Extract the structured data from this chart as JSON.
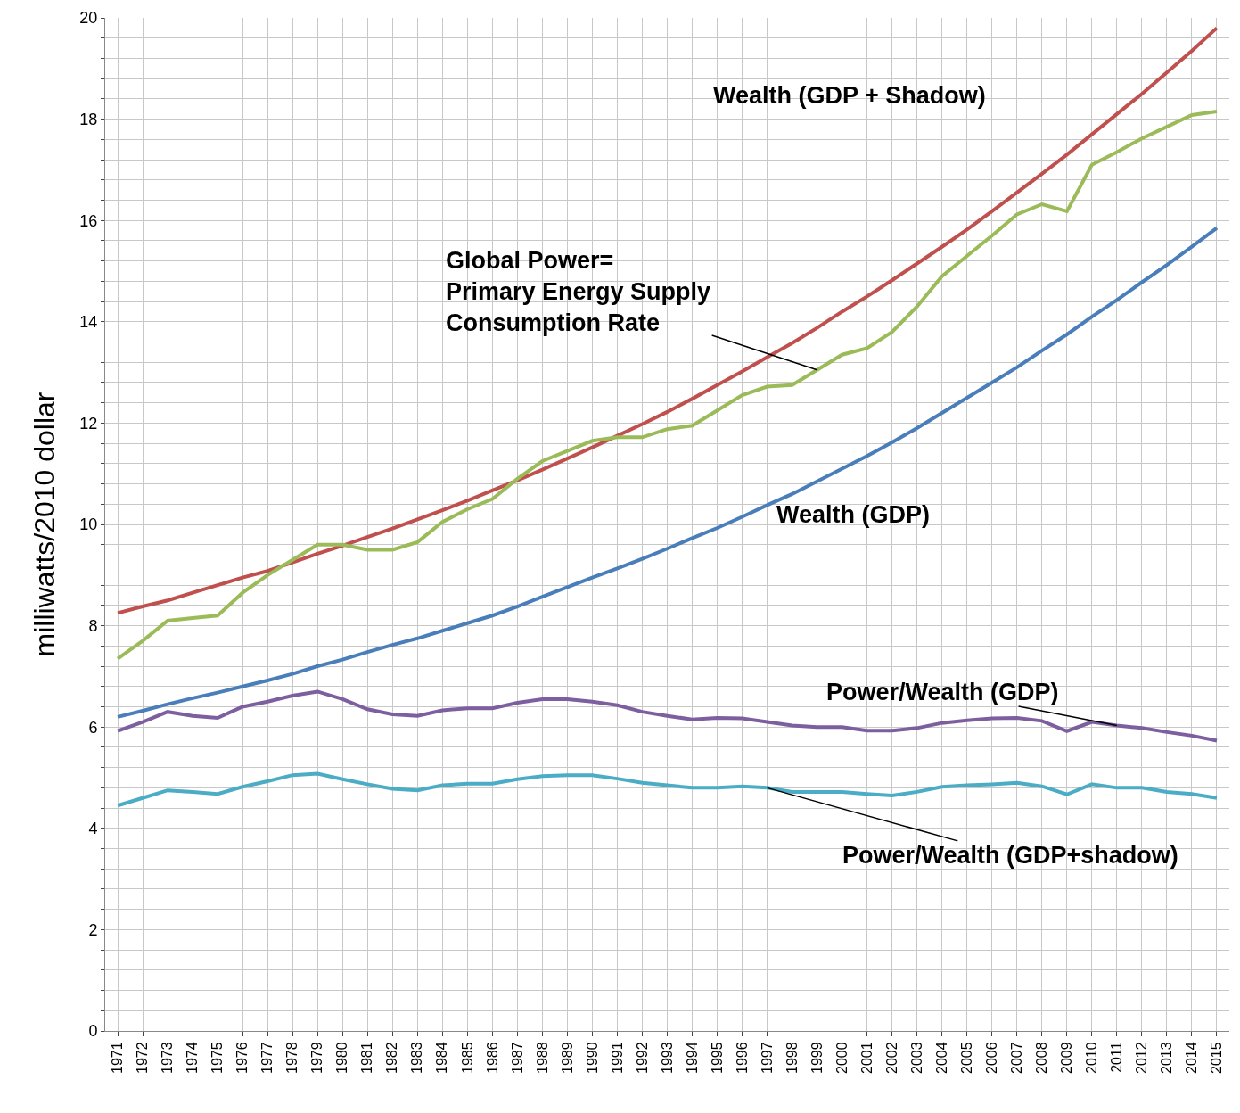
{
  "chart_data": {
    "type": "line",
    "ylabel": "milliwatts/2010 dollar",
    "categories": [
      "1971",
      "1972",
      "1973",
      "1974",
      "1975",
      "1976",
      "1977",
      "1978",
      "1979",
      "1980",
      "1981",
      "1982",
      "1983",
      "1984",
      "1985",
      "1986",
      "1987",
      "1988",
      "1989",
      "1990",
      "1991",
      "1992",
      "1993",
      "1994",
      "1995",
      "1996",
      "1997",
      "1998",
      "1999",
      "2000",
      "2001",
      "2002",
      "2003",
      "2004",
      "2005",
      "2006",
      "2007",
      "2008",
      "2009",
      "2010",
      "2011",
      "2012",
      "2013",
      "2014",
      "2015"
    ],
    "series": [
      {
        "color": "#c0504d",
        "values": [
          8.25,
          8.38,
          8.5,
          8.65,
          8.8,
          8.95,
          9.08,
          9.25,
          9.42,
          9.58,
          9.75,
          9.92,
          10.1,
          10.28,
          10.47,
          10.67,
          10.87,
          11.08,
          11.3,
          11.52,
          11.75,
          11.98,
          12.22,
          12.48,
          12.75,
          13.02,
          13.3,
          13.58,
          13.88,
          14.2,
          14.5,
          14.82,
          15.15,
          15.48,
          15.82,
          16.18,
          16.55,
          16.92,
          17.3,
          17.7,
          18.1,
          18.5,
          18.92,
          19.35,
          19.8
        ]
      },
      {
        "color": "#9bbb59",
        "values": [
          7.35,
          7.7,
          8.1,
          8.15,
          8.2,
          8.65,
          9.0,
          9.3,
          9.6,
          9.6,
          9.5,
          9.5,
          9.65,
          10.05,
          10.3,
          10.5,
          10.9,
          11.25,
          11.45,
          11.65,
          11.72,
          11.72,
          11.88,
          11.95,
          12.25,
          12.55,
          12.72,
          12.75,
          13.05,
          13.35,
          13.48,
          13.8,
          14.3,
          14.9,
          15.3,
          15.7,
          16.12,
          16.32,
          16.18,
          17.1,
          17.35,
          17.62,
          17.85,
          18.08,
          18.15
        ]
      },
      {
        "color": "#4a7ebb",
        "values": [
          6.2,
          6.32,
          6.45,
          6.57,
          6.68,
          6.8,
          6.92,
          7.05,
          7.2,
          7.33,
          7.48,
          7.62,
          7.75,
          7.9,
          8.05,
          8.2,
          8.38,
          8.57,
          8.76,
          8.95,
          9.13,
          9.32,
          9.52,
          9.73,
          9.93,
          10.15,
          10.38,
          10.6,
          10.85,
          11.1,
          11.35,
          11.62,
          11.9,
          12.2,
          12.5,
          12.8,
          13.1,
          13.43,
          13.75,
          14.1,
          14.43,
          14.78,
          15.12,
          15.48,
          15.85
        ]
      },
      {
        "color": "#7d5fa0",
        "values": [
          5.92,
          6.1,
          6.3,
          6.22,
          6.18,
          6.4,
          6.5,
          6.62,
          6.7,
          6.55,
          6.35,
          6.25,
          6.22,
          6.33,
          6.37,
          6.37,
          6.48,
          6.55,
          6.55,
          6.5,
          6.43,
          6.3,
          6.22,
          6.15,
          6.18,
          6.17,
          6.1,
          6.03,
          6.0,
          6.0,
          5.93,
          5.93,
          5.98,
          6.08,
          6.13,
          6.17,
          6.18,
          6.12,
          5.92,
          6.1,
          6.03,
          5.98,
          5.9,
          5.83,
          5.73
        ]
      },
      {
        "color": "#4bacc6",
        "values": [
          4.45,
          4.6,
          4.75,
          4.72,
          4.68,
          4.82,
          4.93,
          5.05,
          5.08,
          4.97,
          4.87,
          4.78,
          4.75,
          4.85,
          4.88,
          4.88,
          4.97,
          5.03,
          5.05,
          5.05,
          4.98,
          4.9,
          4.85,
          4.8,
          4.8,
          4.83,
          4.8,
          4.72,
          4.72,
          4.72,
          4.68,
          4.65,
          4.72,
          4.82,
          4.85,
          4.87,
          4.9,
          4.83,
          4.67,
          4.87,
          4.8,
          4.8,
          4.72,
          4.68,
          4.6
        ]
      }
    ],
    "annotations": [
      "Wealth (GDP + Shadow)",
      {
        "text": "Global Power=\nPrimary Energy Supply\nConsumption Rate",
        "x": "1999",
        "y": 13.05
      },
      "Wealth (GDP)",
      {
        "text": "Power/Wealth (GDP)",
        "x": "2011",
        "y": 6.03
      },
      {
        "text": "Power/Wealth (GDP+shadow)",
        "x": "1997",
        "y": 4.8
      }
    ],
    "ylim": [
      0,
      20
    ],
    "yticks": [
      0,
      {
        "value": 0.4,
        "label": null
      },
      {
        "value": 0.8,
        "label": null
      },
      {
        "value": 1.2,
        "label": null
      },
      {
        "value": 1.6,
        "label": null
      },
      2,
      {
        "value": 2.4,
        "label": null
      },
      {
        "value": 2.8,
        "label": null
      },
      {
        "value": 3.2,
        "label": null
      },
      {
        "value": 3.6,
        "label": null
      },
      4,
      {
        "value": 4.4,
        "label": null
      },
      {
        "value": 4.8,
        "label": null
      },
      {
        "value": 5.2,
        "label": null
      },
      {
        "value": 5.6,
        "label": null
      },
      6,
      {
        "value": 6.4,
        "label": null
      },
      {
        "value": 6.8,
        "label": null
      },
      {
        "value": 7.2,
        "label": null
      },
      {
        "value": 7.6,
        "label": null
      },
      8,
      {
        "value": 8.4,
        "label": null
      },
      {
        "value": 8.8,
        "label": null
      },
      {
        "value": 9.2,
        "label": null
      },
      {
        "value": 9.6,
        "label": null
      },
      10,
      {
        "value": 10.4,
        "label": null
      },
      {
        "value": 10.8,
        "label": null
      },
      {
        "value": 11.2,
        "label": null
      },
      {
        "value": 11.6,
        "label": null
      },
      12,
      {
        "value": 12.4,
        "label": null
      },
      {
        "value": 12.8,
        "label": null
      },
      {
        "value": 13.2,
        "label": null
      },
      {
        "value": 13.6,
        "label": null
      },
      14,
      {
        "value": 14.4,
        "label": null
      },
      {
        "value": 14.8,
        "label": null
      },
      {
        "value": 15.2,
        "label": null
      },
      {
        "value": 15.6,
        "label": null
      },
      16,
      {
        "value": 16.4,
        "label": null
      },
      {
        "value": 16.8,
        "label": null
      },
      {
        "value": 17.2,
        "label": null
      },
      {
        "value": 17.6,
        "label": null
      },
      18,
      {
        "value": 18.4,
        "label": null
      },
      {
        "value": 18.8,
        "label": null
      },
      {
        "value": 19.2,
        "label": null
      },
      {
        "value": 19.6,
        "label": null
      },
      20
    ],
    "grid": true,
    "marker": "none",
    "line_style": "solid"
  }
}
